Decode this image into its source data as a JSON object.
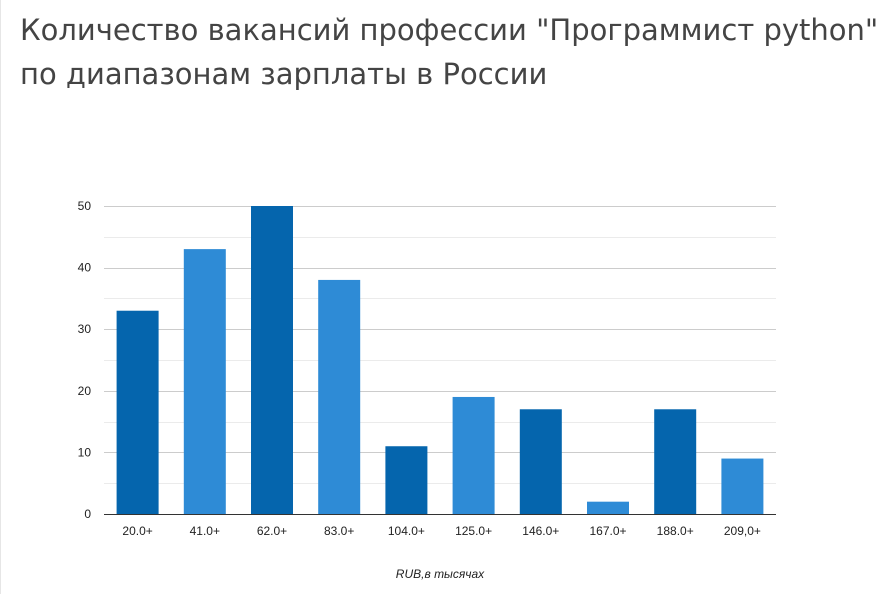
{
  "title_lines": [
    "Количество вакансий профессии \"Программист python\"",
    "по диапазонам зарплаты в России"
  ],
  "colors": {
    "bar_dark": "#0565ad",
    "bar_light": "#2e8bd6",
    "grid_major": "#cccccc",
    "grid_minor": "#ebebeb",
    "axis": "#333333"
  },
  "chart_data": {
    "type": "bar",
    "title": "Количество вакансий профессии \"Программист python\" по диапазонам зарплаты в России",
    "categories": [
      "20.0+",
      "41.0+",
      "62.0+",
      "83.0+",
      "104.0+",
      "125.0+",
      "146.0+",
      "167.0+",
      "188.0+",
      "209,0+"
    ],
    "values": [
      33,
      43,
      50,
      38,
      11,
      19,
      17,
      2,
      17,
      9
    ],
    "bar_colors": [
      "dark",
      "light",
      "dark",
      "light",
      "dark",
      "light",
      "dark",
      "light",
      "dark",
      "light"
    ],
    "xlabel": "RUB,в тысячах",
    "ylabel": "",
    "ylim": [
      0,
      50
    ],
    "yticks": [
      0,
      10,
      20,
      30,
      40,
      50
    ],
    "grid": true,
    "legend": "none"
  }
}
